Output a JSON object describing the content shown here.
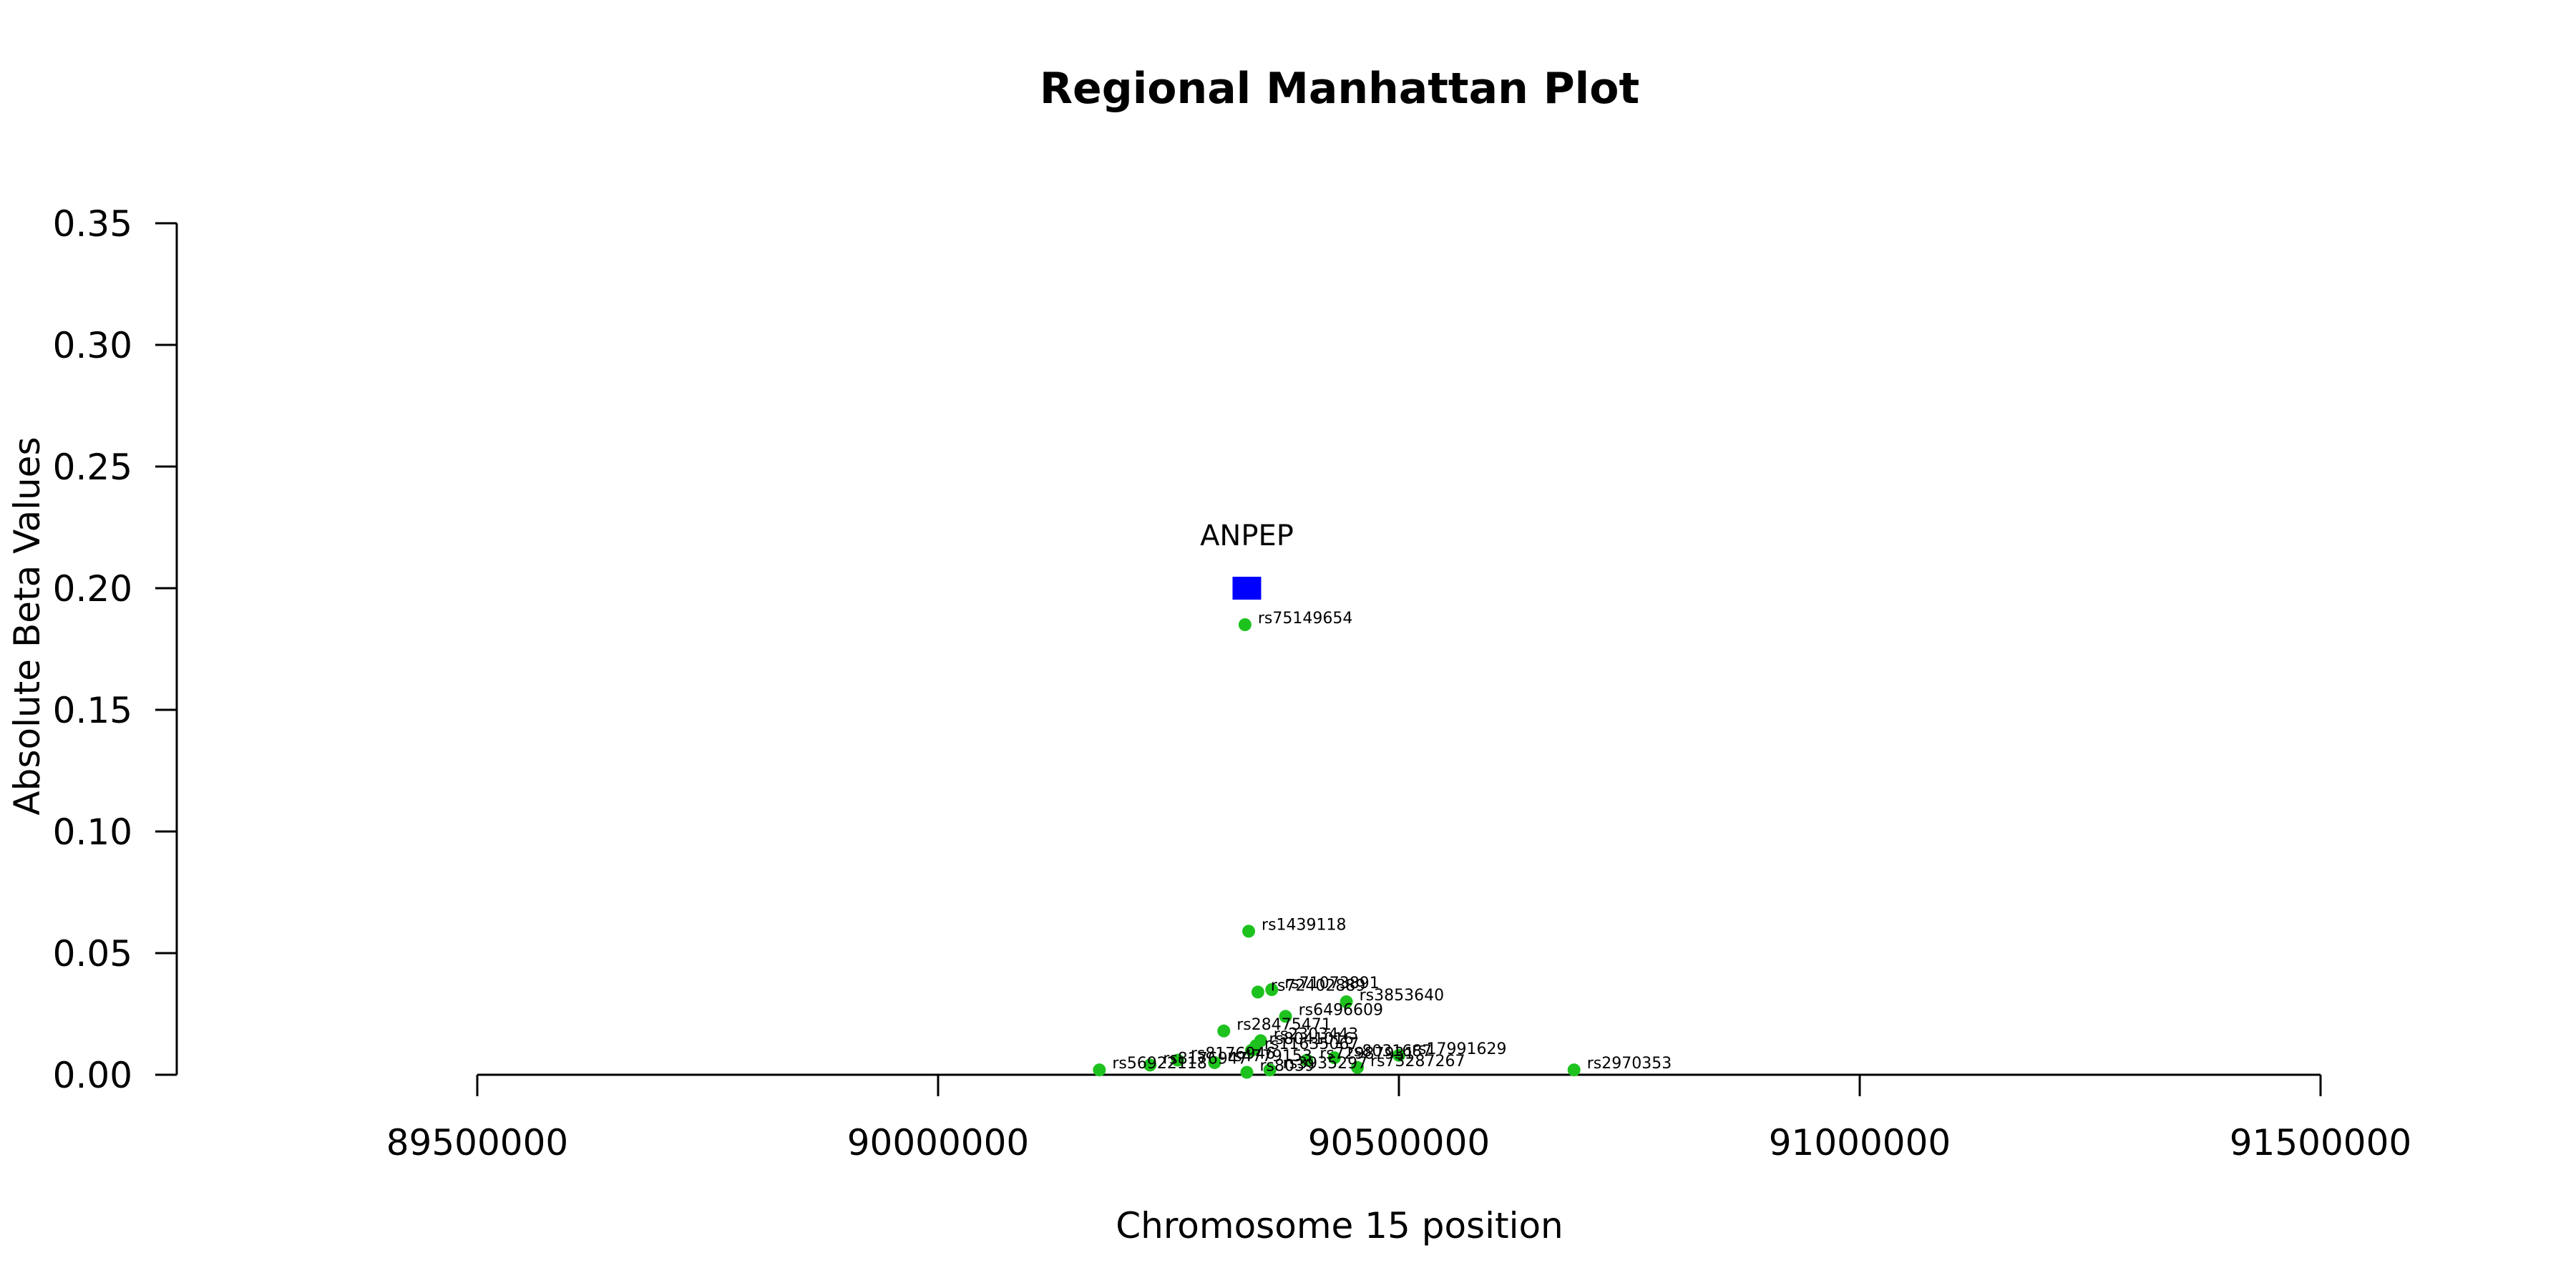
{
  "chart_data": {
    "type": "scatter",
    "title": "Regional Manhattan Plot",
    "xlabel": "Chromosome 15 position",
    "ylabel": "Absolute Beta Values",
    "xlim": [
      89500000,
      91500000
    ],
    "ylim": [
      0,
      0.35
    ],
    "x_ticks": [
      89500000,
      90000000,
      90500000,
      91000000,
      91500000
    ],
    "y_ticks": [
      "0.00",
      "0.05",
      "0.10",
      "0.15",
      "0.20",
      "0.25",
      "0.30",
      "0.35"
    ],
    "grid": false,
    "gene": {
      "name": "ANPEP",
      "x": 90335000,
      "y": 0.2,
      "color": "#0000ff",
      "marker": "square"
    },
    "snp_color": "#1ec21e",
    "series": [
      {
        "marker": "circle",
        "points": [
          {
            "label": "rs75149654",
            "x": 90333000,
            "y": 0.185
          },
          {
            "label": "rs1439118",
            "x": 90337000,
            "y": 0.059
          },
          {
            "label": "rs71073891",
            "x": 90362000,
            "y": 0.035
          },
          {
            "label": "rs72402889",
            "x": 90347000,
            "y": 0.034
          },
          {
            "label": "rs3853640",
            "x": 90443000,
            "y": 0.03
          },
          {
            "label": "rs6496609",
            "x": 90377000,
            "y": 0.024
          },
          {
            "label": "rs28475471",
            "x": 90310000,
            "y": 0.018
          },
          {
            "label": "rs2303443",
            "x": 90350000,
            "y": 0.014
          },
          {
            "label": "rs8041016",
            "x": 90345000,
            "y": 0.012
          },
          {
            "label": "rs11635067",
            "x": 90340000,
            "y": 0.01
          },
          {
            "label": "rs17991629",
            "x": 90500000,
            "y": 0.008
          },
          {
            "label": "rs8031687",
            "x": 90430000,
            "y": 0.007
          },
          {
            "label": "rs72987931",
            "x": 90400000,
            "y": 0.006
          },
          {
            "label": "rs73287267",
            "x": 90455000,
            "y": 0.003
          },
          {
            "label": "rs8176946",
            "x": 90260000,
            "y": 0.006
          },
          {
            "label": "rs4779153",
            "x": 90300000,
            "y": 0.005
          },
          {
            "label": "rs8176947",
            "x": 90230000,
            "y": 0.004
          },
          {
            "label": "rs56922118",
            "x": 90175000,
            "y": 0.002
          },
          {
            "label": "rs3935297",
            "x": 90360000,
            "y": 0.002
          },
          {
            "label": "rs8039",
            "x": 90335000,
            "y": 0.001
          },
          {
            "label": "rs2970353",
            "x": 90690000,
            "y": 0.002
          }
        ]
      }
    ]
  }
}
